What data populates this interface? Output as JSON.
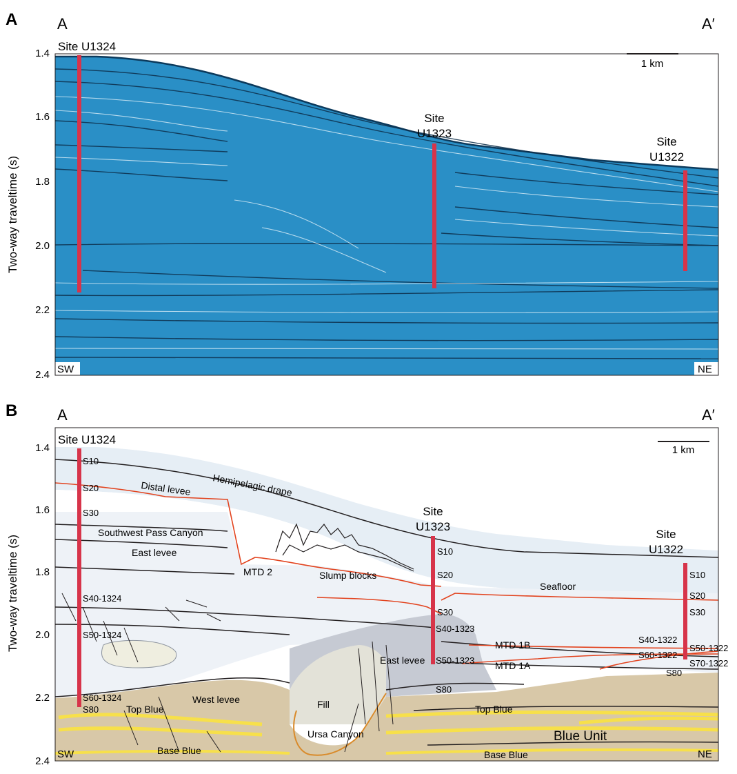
{
  "panel_a": {
    "panel_letter": "A",
    "left_label": "A",
    "right_label": "A′",
    "y_axis_label": "Two-way traveltime (s)",
    "y_ticks": [
      "1.4",
      "1.6",
      "1.8",
      "2.0",
      "2.2",
      "2.4"
    ],
    "scale_label": "1 km",
    "sites": [
      {
        "name": "Site U1324"
      },
      {
        "line1": "Site",
        "line2": "U1323"
      },
      {
        "line1": "Site",
        "line2": "U1322"
      }
    ],
    "corner_left": "SW",
    "corner_right": "NE",
    "colors": {
      "seismic": "#2a8fc6",
      "site_bar": "#d7344a"
    }
  },
  "panel_b": {
    "panel_letter": "B",
    "left_label": "A",
    "right_label": "A′",
    "y_axis_label": "Two-way traveltime (s)",
    "y_ticks": [
      "1.4",
      "1.6",
      "1.8",
      "2.0",
      "2.2",
      "2.4"
    ],
    "scale_label": "1 km",
    "sites": [
      {
        "name": "Site U1324"
      },
      {
        "line1": "Site",
        "line2": "U1323"
      },
      {
        "line1": "Site",
        "line2": "U1322"
      }
    ],
    "corner_left": "SW",
    "corner_right": "NE",
    "unit_labels": {
      "distal_levee": "Distal levee",
      "hemipelagic_drape": "Hemipelagic drape",
      "seafloor": "Seafloor",
      "southwest_pass_canyon": "Southwest Pass Canyon",
      "east_levee": "East levee",
      "mtd2": "MTD 2",
      "slump_blocks": "Slump blocks",
      "mtd1b": "MTD 1B",
      "mtd1a": "MTD 1A",
      "east_levee_2": "East levee",
      "west_levee": "West levee",
      "fill": "Fill",
      "top_blue_left": "Top Blue",
      "top_blue_right": "Top Blue",
      "ursa_canyon": "Ursa Canyon",
      "blue_unit": "Blue Unit",
      "base_blue_left": "Base Blue",
      "base_blue_right": "Base Blue"
    },
    "horizons_u1324": [
      "S10",
      "S20",
      "S30",
      "S40-1324",
      "S50-1324",
      "S60-1324",
      "S80"
    ],
    "horizons_u1323": [
      "S10",
      "S20",
      "S30",
      "S40-1323",
      "S50-1323",
      "S80"
    ],
    "horizons_u1322": [
      "S10",
      "S20",
      "S30",
      "S40-1322",
      "S50-1322",
      "S60-1322",
      "S70-1322",
      "S80"
    ],
    "colors": {
      "site_bar": "#d7344a",
      "mtd_line": "#e2431e",
      "canyon_line": "#d98a2a",
      "blue_unit": "#d8c8a8",
      "sand": "#f7e04a"
    }
  }
}
